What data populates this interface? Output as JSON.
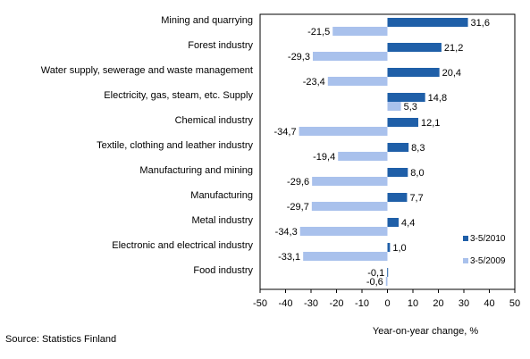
{
  "chart_data": {
    "type": "bar",
    "orientation": "horizontal",
    "categories": [
      "Mining and quarrying",
      "Forest industry",
      "Water supply, sewerage and waste management",
      "Electricity, gas, steam, etc. Supply",
      "Chemical industry",
      "Textile, clothing and leather industry",
      "Manufacturing and mining",
      "Manufacturing",
      "Metal industry",
      "Electronic and electrical industry",
      "Food industry"
    ],
    "series": [
      {
        "name": "3-5/2010",
        "color": "#1f5fa8",
        "values": [
          31.6,
          21.2,
          20.4,
          14.8,
          12.1,
          8.3,
          8.0,
          7.7,
          4.4,
          1.0,
          -0.1
        ],
        "labels": [
          "31,6",
          "21,2",
          "20,4",
          "14,8",
          "12,1",
          "8,3",
          "8,0",
          "7,7",
          "4,4",
          "1,0",
          "-0,1"
        ]
      },
      {
        "name": "3-5/2009",
        "color": "#a9c1ec",
        "values": [
          -21.5,
          -29.3,
          -23.4,
          5.3,
          -34.7,
          -19.4,
          -29.6,
          -29.7,
          -34.3,
          -33.1,
          -0.6
        ],
        "labels": [
          "-21,5",
          "-29,3",
          "-23,4",
          "5,3",
          "-34,7",
          "-19,4",
          "-29,6",
          "-29,7",
          "-34,3",
          "-33,1",
          "-0,6"
        ]
      }
    ],
    "xlim": [
      -50,
      50
    ],
    "xticks": [
      -50,
      -40,
      -30,
      -20,
      -10,
      0,
      10,
      20,
      30,
      40,
      50
    ],
    "xlabel": "Year-on-year change, %",
    "legend_position": "right",
    "grid": false
  },
  "source": "Source: Statistics Finland"
}
